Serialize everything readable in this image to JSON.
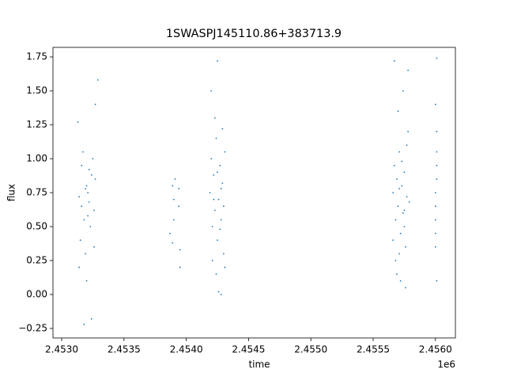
{
  "chart_data": {
    "type": "scatter",
    "title": "1SWASPJ145110.86+383713.9",
    "x_label": "time",
    "y_label": "flux",
    "x_offset_label": "1e6",
    "color": "#1f77b4",
    "xlim": [
      2.45293,
      2.45616
    ],
    "ylim": [
      -0.32,
      1.82
    ],
    "xticks": [
      {
        "value": 2.453,
        "label": "2.4530"
      },
      2.4535,
      {
        "value": 2.454,
        "label": "2.4540"
      },
      2.4545,
      {
        "value": 2.455,
        "label": "2.4550"
      },
      2.4555,
      {
        "value": 2.456,
        "label": "2.4560"
      }
    ],
    "yticks": [
      {
        "value": -0.25,
        "label": "−0.25"
      },
      {
        "value": 0,
        "label": "0.00"
      },
      0.25,
      {
        "value": 0.5,
        "label": "0.50"
      },
      0.75,
      {
        "value": 1,
        "label": "1.00"
      },
      1.25,
      {
        "value": 1.5,
        "label": "1.50"
      },
      1.75
    ],
    "x": [
      2.45314,
      2.45316,
      2.45318,
      2.4532,
      2.45322,
      2.45324,
      2.45326,
      2.45315,
      2.45317,
      2.45319,
      2.45321,
      2.45323,
      2.45325,
      2.45327,
      2.45314,
      2.45318,
      2.45324,
      2.45327,
      2.45329,
      2.4532,
      2.45316,
      2.45322,
      2.45313,
      2.45326,
      2.45319,
      2.45321,
      2.45387,
      2.45389,
      2.4539,
      2.4539,
      2.45391,
      2.45394,
      2.45395,
      2.45395,
      2.45394,
      2.45389,
      2.45419,
      2.4542,
      2.45421,
      2.45422,
      2.45423,
      2.45424,
      2.45425,
      2.45426,
      2.45427,
      2.45428,
      2.45429,
      2.4543,
      2.45431,
      2.45421,
      2.45423,
      2.45424,
      2.45425,
      2.45426,
      2.45428,
      2.4543,
      2.45429,
      2.45422,
      2.45427,
      2.4542,
      2.45431,
      2.45425,
      2.45428,
      2.45566,
      2.45567,
      2.45568,
      2.45569,
      2.4557,
      2.45571,
      2.45572,
      2.45573,
      2.45574,
      2.45575,
      2.45576,
      2.45577,
      2.45578,
      2.45568,
      2.4557,
      2.45572,
      2.45574,
      2.45576,
      2.45578,
      2.45567,
      2.45569,
      2.45573,
      2.45575,
      2.45571,
      2.45577,
      2.45566,
      2.45579,
      2.45571,
      2.45575,
      2.456,
      2.45601,
      2.456,
      2.45601,
      2.456,
      2.45601,
      2.456,
      2.45601,
      2.45601,
      2.456,
      2.45601,
      2.456
    ],
    "values": [
      0.72,
      0.95,
      0.55,
      0.8,
      0.68,
      0.88,
      0.62,
      0.4,
      1.05,
      0.3,
      0.75,
      0.5,
      1,
      0.85,
      0.2,
      -0.22,
      -0.18,
      1.4,
      1.58,
      0.1,
      0.65,
      0.92,
      1.27,
      0.35,
      0.78,
      0.58,
      0.45,
      0.8,
      0.7,
      0.55,
      0.85,
      0.65,
      0.2,
      0.33,
      0.78,
      0.38,
      0.75,
      1,
      0.5,
      0.88,
      0.62,
      1.15,
      0.4,
      0.7,
      0.95,
      0.55,
      0.82,
      0.65,
      1.05,
      0.25,
      1.3,
      0.15,
      1.72,
      0.02,
      0,
      0.3,
      1.22,
      0.7,
      0.48,
      1.5,
      0.2,
      0.9,
      0.78,
      0.75,
      0.95,
      0.55,
      0.85,
      0.65,
      1.05,
      0.45,
      0.8,
      0.6,
      0.9,
      0.35,
      0.72,
      1.2,
      0.25,
      1.35,
      0.1,
      1.5,
      0.05,
      1.65,
      1.72,
      0.15,
      0.98,
      0.5,
      0.3,
      1.1,
      0.4,
      0.68,
      0.78,
      0.62,
      0.75,
      0.95,
      0.55,
      1.2,
      0.35,
      0.85,
      1.4,
      0.1,
      1.74,
      0.65,
      1.05,
      0.45
    ]
  }
}
